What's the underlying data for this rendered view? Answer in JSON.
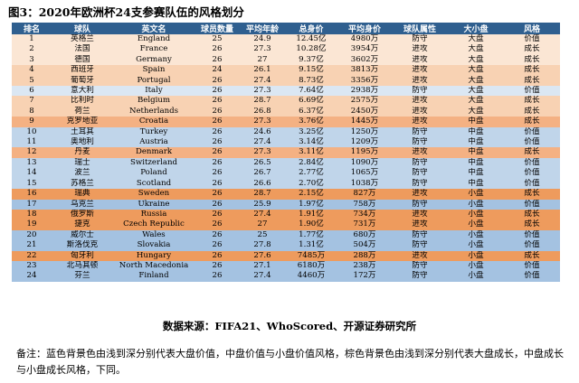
{
  "figure": {
    "title": "图3：2020年欧洲杯24支参赛队伍的风格划分"
  },
  "table": {
    "headers": [
      "排名",
      "球队",
      "英文名",
      "球员数量",
      "平均年龄",
      "总身价",
      "平均身价",
      "球队属性",
      "大小盘",
      "风格"
    ],
    "rows": [
      {
        "rank": "1",
        "team": "英格兰",
        "en": "England",
        "players": "25",
        "age": "24.9",
        "total": "12.45亿",
        "avg": "4980万",
        "attr": "防守",
        "size": "大盘",
        "style": "价值",
        "tone": "c1"
      },
      {
        "rank": "2",
        "team": "法国",
        "en": "France",
        "players": "26",
        "age": "27.3",
        "total": "10.28亿",
        "avg": "3954万",
        "attr": "进攻",
        "size": "大盘",
        "style": "成长",
        "tone": "c1"
      },
      {
        "rank": "3",
        "team": "德国",
        "en": "Germany",
        "players": "26",
        "age": "27",
        "total": "9.37亿",
        "avg": "3602万",
        "attr": "进攻",
        "size": "大盘",
        "style": "成长",
        "tone": "c1"
      },
      {
        "rank": "4",
        "team": "西班牙",
        "en": "Spain",
        "players": "24",
        "age": "26.1",
        "total": "9.15亿",
        "avg": "3813万",
        "attr": "进攻",
        "size": "大盘",
        "style": "成长",
        "tone": "c2"
      },
      {
        "rank": "5",
        "team": "葡萄牙",
        "en": "Portugal",
        "players": "26",
        "age": "27.4",
        "total": "8.73亿",
        "avg": "3356万",
        "attr": "进攻",
        "size": "大盘",
        "style": "成长",
        "tone": "c2"
      },
      {
        "rank": "6",
        "team": "意大利",
        "en": "Italy",
        "players": "26",
        "age": "27.3",
        "total": "7.64亿",
        "avg": "2938万",
        "attr": "防守",
        "size": "大盘",
        "style": "价值",
        "tone": "b1"
      },
      {
        "rank": "7",
        "team": "比利时",
        "en": "Belgium",
        "players": "26",
        "age": "28.7",
        "total": "6.69亿",
        "avg": "2575万",
        "attr": "进攻",
        "size": "大盘",
        "style": "成长",
        "tone": "c2"
      },
      {
        "rank": "8",
        "team": "荷兰",
        "en": "Netherlands",
        "players": "26",
        "age": "26.8",
        "total": "6.37亿",
        "avg": "2450万",
        "attr": "进攻",
        "size": "大盘",
        "style": "成长",
        "tone": "c2"
      },
      {
        "rank": "9",
        "team": "克罗地亚",
        "en": "Croatia",
        "players": "26",
        "age": "27.3",
        "total": "3.76亿",
        "avg": "1445万",
        "attr": "进攻",
        "size": "中盘",
        "style": "成长",
        "tone": "c3"
      },
      {
        "rank": "10",
        "team": "土耳其",
        "en": "Turkey",
        "players": "26",
        "age": "24.6",
        "total": "3.25亿",
        "avg": "1250万",
        "attr": "防守",
        "size": "中盘",
        "style": "价值",
        "tone": "b2"
      },
      {
        "rank": "11",
        "team": "奥地利",
        "en": "Austria",
        "players": "26",
        "age": "27.4",
        "total": "3.14亿",
        "avg": "1209万",
        "attr": "防守",
        "size": "中盘",
        "style": "价值",
        "tone": "b2"
      },
      {
        "rank": "12",
        "team": "丹麦",
        "en": "Denmark",
        "players": "26",
        "age": "27.3",
        "total": "3.11亿",
        "avg": "1195万",
        "attr": "进攻",
        "size": "中盘",
        "style": "成长",
        "tone": "c3"
      },
      {
        "rank": "13",
        "team": "瑞士",
        "en": "Switzerland",
        "players": "26",
        "age": "26.5",
        "total": "2.84亿",
        "avg": "1090万",
        "attr": "防守",
        "size": "中盘",
        "style": "价值",
        "tone": "b2"
      },
      {
        "rank": "14",
        "team": "波兰",
        "en": "Poland",
        "players": "26",
        "age": "26.7",
        "total": "2.77亿",
        "avg": "1065万",
        "attr": "防守",
        "size": "中盘",
        "style": "价值",
        "tone": "b2"
      },
      {
        "rank": "15",
        "team": "苏格兰",
        "en": "Scotland",
        "players": "26",
        "age": "26.6",
        "total": "2.70亿",
        "avg": "1038万",
        "attr": "防守",
        "size": "中盘",
        "style": "价值",
        "tone": "b2"
      },
      {
        "rank": "16",
        "team": "瑞典",
        "en": "Sweden",
        "players": "26",
        "age": "28.7",
        "total": "2.15亿",
        "avg": "827万",
        "attr": "进攻",
        "size": "小盘",
        "style": "成长",
        "tone": "c4"
      },
      {
        "rank": "17",
        "team": "乌克兰",
        "en": "Ukraine",
        "players": "26",
        "age": "25.9",
        "total": "1.97亿",
        "avg": "758万",
        "attr": "防守",
        "size": "小盘",
        "style": "价值",
        "tone": "b3"
      },
      {
        "rank": "18",
        "team": "俄罗斯",
        "en": "Russia",
        "players": "26",
        "age": "27.4",
        "total": "1.91亿",
        "avg": "734万",
        "attr": "进攻",
        "size": "小盘",
        "style": "成长",
        "tone": "c4"
      },
      {
        "rank": "19",
        "team": "捷克",
        "en": "Czech Republic",
        "players": "26",
        "age": "27",
        "total": "1.90亿",
        "avg": "731万",
        "attr": "进攻",
        "size": "小盘",
        "style": "成长",
        "tone": "c4"
      },
      {
        "rank": "20",
        "team": "威尔士",
        "en": "Wales",
        "players": "26",
        "age": "25",
        "total": "1.77亿",
        "avg": "680万",
        "attr": "防守",
        "size": "小盘",
        "style": "价值",
        "tone": "b3"
      },
      {
        "rank": "21",
        "team": "斯洛伐克",
        "en": "Slovakia",
        "players": "26",
        "age": "27.8",
        "total": "1.31亿",
        "avg": "504万",
        "attr": "防守",
        "size": "小盘",
        "style": "价值",
        "tone": "b3"
      },
      {
        "rank": "22",
        "team": "匈牙利",
        "en": "Hungary",
        "players": "26",
        "age": "27.6",
        "total": "7485万",
        "avg": "288万",
        "attr": "进攻",
        "size": "小盘",
        "style": "成长",
        "tone": "c4"
      },
      {
        "rank": "23",
        "team": "北马其顿",
        "en": "North Macedonia",
        "players": "26",
        "age": "27.1",
        "total": "6180万",
        "avg": "238万",
        "attr": "防守",
        "size": "小盘",
        "style": "价值",
        "tone": "b3"
      },
      {
        "rank": "24",
        "team": "芬兰",
        "en": "Finland",
        "players": "26",
        "age": "27.4",
        "total": "4460万",
        "avg": "172万",
        "attr": "防守",
        "size": "小盘",
        "style": "价值",
        "tone": "b3"
      }
    ]
  },
  "source": "数据来源：FIFA21、WhoScored、开源证券研究所",
  "note": "备注：蓝色背景色由浅到深分别代表大盘价值，中盘价值与小盘价值风格，棕色背景色由浅到深分别代表大盘成长，中盘成长与小盘成长风格，下同。",
  "colors": {
    "header_bg": "#2f5f8f",
    "brown_light": "#fbe6d4",
    "brown_mid": "#f4b183",
    "brown_dark": "#ee9b5d",
    "blue_light": "#dbe7f3",
    "blue_mid": "#c0d5ea",
    "blue_dark": "#a4c2e1"
  }
}
